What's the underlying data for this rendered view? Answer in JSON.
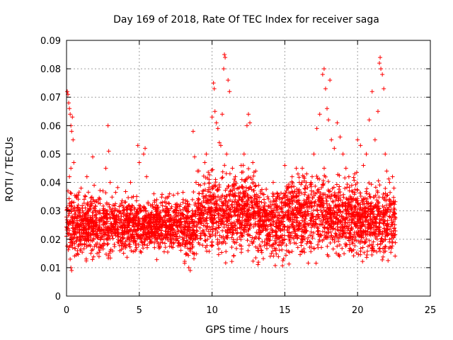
{
  "chart_data": {
    "type": "scatter",
    "title": "Day 169 of 2018, Rate Of TEC Index for receiver saga",
    "xlabel": "GPS time / hours",
    "ylabel": "ROTI / TECUs",
    "xlim": [
      0,
      25
    ],
    "ylim": [
      0,
      0.09
    ],
    "x_ticks": [
      0,
      5,
      10,
      15,
      20,
      25
    ],
    "x_tick_labels": [
      "0",
      "5",
      "10",
      "15",
      "20",
      "25"
    ],
    "y_ticks": [
      0,
      0.01,
      0.02,
      0.03,
      0.04,
      0.05,
      0.06,
      0.07,
      0.08,
      0.09
    ],
    "y_tick_labels": [
      "0",
      "0.01",
      "0.02",
      "0.03",
      "0.04",
      "0.05",
      "0.06",
      "0.07",
      "0.08",
      "0.09"
    ],
    "grid": true,
    "marker": "+",
    "marker_color": "#ff0000",
    "series": [
      {
        "name": "",
        "points": [
          [
            0.05,
            0.072
          ],
          [
            0.1,
            0.071
          ],
          [
            0.15,
            0.068
          ],
          [
            0.2,
            0.066
          ],
          [
            0.25,
            0.064
          ],
          [
            0.3,
            0.06
          ],
          [
            0.35,
            0.058
          ],
          [
            0.4,
            0.063
          ],
          [
            0.45,
            0.055
          ],
          [
            0.5,
            0.047
          ],
          [
            0.2,
            0.042
          ],
          [
            0.3,
            0.045
          ],
          [
            0.1,
            0.037
          ],
          [
            0.15,
            0.03
          ],
          [
            0.2,
            0.022
          ],
          [
            0.25,
            0.013
          ],
          [
            0.3,
            0.01
          ],
          [
            0.35,
            0.009
          ],
          [
            0.4,
            0.026
          ],
          [
            0.5,
            0.033
          ],
          [
            0.6,
            0.028
          ],
          [
            0.7,
            0.025
          ],
          [
            0.8,
            0.032
          ],
          [
            0.9,
            0.02
          ],
          [
            1.0,
            0.038
          ],
          [
            1.1,
            0.03
          ],
          [
            1.2,
            0.024
          ],
          [
            1.3,
            0.035
          ],
          [
            1.4,
            0.042
          ],
          [
            1.5,
            0.027
          ],
          [
            1.6,
            0.018
          ],
          [
            1.7,
            0.032
          ],
          [
            1.8,
            0.049
          ],
          [
            1.9,
            0.039
          ],
          [
            2.0,
            0.026
          ],
          [
            2.1,
            0.015
          ],
          [
            2.2,
            0.034
          ],
          [
            2.3,
            0.029
          ],
          [
            2.4,
            0.022
          ],
          [
            2.5,
            0.037
          ],
          [
            2.7,
            0.045
          ],
          [
            2.85,
            0.06
          ],
          [
            2.9,
            0.051
          ],
          [
            3.0,
            0.04
          ],
          [
            3.2,
            0.032
          ],
          [
            3.4,
            0.026
          ],
          [
            3.6,
            0.03
          ],
          [
            3.8,
            0.022
          ],
          [
            4.0,
            0.033
          ],
          [
            4.2,
            0.028
          ],
          [
            4.4,
            0.04
          ],
          [
            4.6,
            0.035
          ],
          [
            4.8,
            0.029
          ],
          [
            4.9,
            0.053
          ],
          [
            5.0,
            0.047
          ],
          [
            5.1,
            0.024
          ],
          [
            5.2,
            0.019
          ],
          [
            5.3,
            0.05
          ],
          [
            5.4,
            0.052
          ],
          [
            5.5,
            0.042
          ],
          [
            5.6,
            0.033
          ],
          [
            5.8,
            0.027
          ],
          [
            6.0,
            0.036
          ],
          [
            6.2,
            0.03
          ],
          [
            6.4,
            0.024
          ],
          [
            6.6,
            0.033
          ],
          [
            6.8,
            0.028
          ],
          [
            7.0,
            0.035
          ],
          [
            7.2,
            0.025
          ],
          [
            7.4,
            0.03
          ],
          [
            7.6,
            0.022
          ],
          [
            7.8,
            0.027
          ],
          [
            8.0,
            0.033
          ],
          [
            8.2,
            0.018
          ],
          [
            8.4,
            0.01
          ],
          [
            8.5,
            0.009
          ],
          [
            8.6,
            0.026
          ],
          [
            8.7,
            0.058
          ],
          [
            8.8,
            0.049
          ],
          [
            8.9,
            0.04
          ],
          [
            9.0,
            0.044
          ],
          [
            9.2,
            0.039
          ],
          [
            9.4,
            0.035
          ],
          [
            9.5,
            0.047
          ],
          [
            9.6,
            0.05
          ],
          [
            9.8,
            0.041
          ],
          [
            10.0,
            0.063
          ],
          [
            10.1,
            0.075
          ],
          [
            10.15,
            0.073
          ],
          [
            10.2,
            0.065
          ],
          [
            10.3,
            0.061
          ],
          [
            10.4,
            0.059
          ],
          [
            10.5,
            0.054
          ],
          [
            10.6,
            0.053
          ],
          [
            10.7,
            0.064
          ],
          [
            10.8,
            0.08
          ],
          [
            10.85,
            0.085
          ],
          [
            10.9,
            0.084
          ],
          [
            11.0,
            0.05
          ],
          [
            11.1,
            0.076
          ],
          [
            11.2,
            0.072
          ],
          [
            11.4,
            0.045
          ],
          [
            11.6,
            0.042
          ],
          [
            11.8,
            0.038
          ],
          [
            12.0,
            0.046
          ],
          [
            12.2,
            0.05
          ],
          [
            12.4,
            0.06
          ],
          [
            12.5,
            0.064
          ],
          [
            12.6,
            0.061
          ],
          [
            12.8,
            0.047
          ],
          [
            13.0,
            0.044
          ],
          [
            13.2,
            0.039
          ],
          [
            13.4,
            0.033
          ],
          [
            13.6,
            0.028
          ],
          [
            13.8,
            0.019
          ],
          [
            14.0,
            0.014
          ],
          [
            14.2,
            0.04
          ],
          [
            14.5,
            0.036
          ],
          [
            14.8,
            0.031
          ],
          [
            15.0,
            0.046
          ],
          [
            15.2,
            0.038
          ],
          [
            15.5,
            0.042
          ],
          [
            15.8,
            0.035
          ],
          [
            16.0,
            0.04
          ],
          [
            16.2,
            0.045
          ],
          [
            16.5,
            0.043
          ],
          [
            16.8,
            0.04
          ],
          [
            17.0,
            0.05
          ],
          [
            17.2,
            0.059
          ],
          [
            17.4,
            0.064
          ],
          [
            17.6,
            0.078
          ],
          [
            17.7,
            0.08
          ],
          [
            17.8,
            0.073
          ],
          [
            17.9,
            0.066
          ],
          [
            18.0,
            0.062
          ],
          [
            18.1,
            0.076
          ],
          [
            18.2,
            0.055
          ],
          [
            18.4,
            0.052
          ],
          [
            18.6,
            0.061
          ],
          [
            18.8,
            0.056
          ],
          [
            19.0,
            0.05
          ],
          [
            19.2,
            0.045
          ],
          [
            19.4,
            0.042
          ],
          [
            19.6,
            0.039
          ],
          [
            19.8,
            0.043
          ],
          [
            20.0,
            0.055
          ],
          [
            20.2,
            0.053
          ],
          [
            20.4,
            0.046
          ],
          [
            20.6,
            0.05
          ],
          [
            20.8,
            0.062
          ],
          [
            21.0,
            0.072
          ],
          [
            21.2,
            0.055
          ],
          [
            21.4,
            0.065
          ],
          [
            21.5,
            0.082
          ],
          [
            21.55,
            0.084
          ],
          [
            21.6,
            0.08
          ],
          [
            21.7,
            0.078
          ],
          [
            21.8,
            0.073
          ],
          [
            21.9,
            0.05
          ],
          [
            22.0,
            0.044
          ],
          [
            22.2,
            0.04
          ],
          [
            22.4,
            0.042
          ],
          [
            22.5,
            0.038
          ]
        ]
      }
    ],
    "band": {
      "description_segments": [
        {
          "x_from": 0.0,
          "x_to": 1.0,
          "y_min": 0.01,
          "y_max": 0.04
        },
        {
          "x_from": 1.0,
          "x_to": 4.0,
          "y_min": 0.01,
          "y_max": 0.04
        },
        {
          "x_from": 4.0,
          "x_to": 8.0,
          "y_min": 0.012,
          "y_max": 0.038
        },
        {
          "x_from": 8.0,
          "x_to": 9.0,
          "y_min": 0.009,
          "y_max": 0.04
        },
        {
          "x_from": 9.0,
          "x_to": 13.0,
          "y_min": 0.01,
          "y_max": 0.048
        },
        {
          "x_from": 13.0,
          "x_to": 15.0,
          "y_min": 0.008,
          "y_max": 0.042
        },
        {
          "x_from": 15.0,
          "x_to": 20.0,
          "y_min": 0.009,
          "y_max": 0.047
        },
        {
          "x_from": 20.0,
          "x_to": 22.6,
          "y_min": 0.009,
          "y_max": 0.043
        }
      ],
      "x_end": 22.6
    }
  }
}
